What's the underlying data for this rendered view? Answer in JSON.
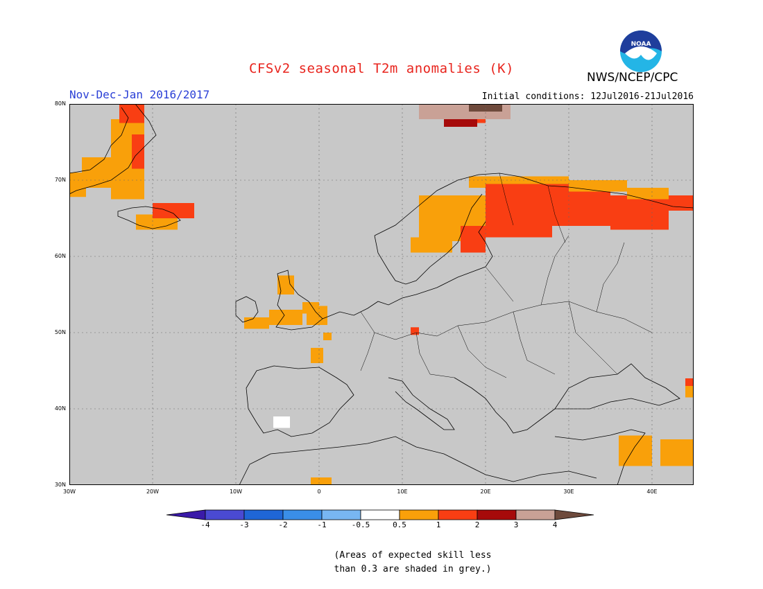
{
  "header": {
    "title": "CFSv2 seasonal T2m anomalies (K)",
    "period": "Nov-Dec-Jan 2016/2017",
    "initial_conditions": "Initial conditions: 12Jul2016-21Jul2016",
    "agency": "NWS/NCEP/CPC",
    "logo_text": "NOAA"
  },
  "map": {
    "extent": {
      "lon": [
        -30,
        45
      ],
      "lat": [
        30,
        80
      ]
    },
    "background_color": "#c8c8c8",
    "grid": true,
    "lat_labels": [
      "30N",
      "40N",
      "50N",
      "60N",
      "70N",
      "80N"
    ],
    "lon_labels": [
      "30W",
      "20W",
      "10W",
      "0",
      "10E",
      "20E",
      "30E",
      "40E"
    ],
    "anomaly_patches": [
      {
        "region": "East Greenland",
        "level": "0.5-1",
        "rects": [
          [
            -25,
            67.5,
            -21,
            78
          ],
          [
            -28.5,
            69,
            -25,
            73
          ],
          [
            -30,
            67.8,
            -28,
            71
          ]
        ]
      },
      {
        "region": "East Greenland coast",
        "level": "1-2",
        "rects": [
          [
            -24,
            77.5,
            -21,
            80
          ],
          [
            -22.5,
            71.5,
            -21,
            76
          ]
        ]
      },
      {
        "region": "Iceland",
        "level": "0.5-1",
        "rects": [
          [
            -22,
            63.5,
            -17,
            65.5
          ]
        ]
      },
      {
        "region": "Iceland",
        "level": "1-2",
        "rects": [
          [
            -20,
            65,
            -15,
            67
          ]
        ]
      },
      {
        "region": "Svalbard",
        "level": "1-2",
        "rects": [
          [
            15,
            77.5,
            20,
            79
          ]
        ]
      },
      {
        "region": "Svalbard",
        "level": "2-3",
        "rects": [
          [
            15,
            77,
            19,
            78
          ]
        ]
      },
      {
        "region": "Svalbard",
        "level": "3-4",
        "rects": [
          [
            12,
            78,
            23,
            80
          ]
        ]
      },
      {
        "region": "Svalbard",
        "level": ">4",
        "rects": [
          [
            18,
            79,
            22,
            80
          ]
        ]
      },
      {
        "region": "Scandinavia",
        "level": "0.5-1",
        "rects": [
          [
            12,
            62,
            17,
            68
          ],
          [
            11,
            60.5,
            16,
            62.5
          ],
          [
            18,
            69,
            30,
            70.5
          ],
          [
            14.5,
            62.5,
            20.5,
            68
          ]
        ]
      },
      {
        "region": "Finland and NW Russia",
        "level": "1-2",
        "rects": [
          [
            20,
            62.5,
            28,
            69.5
          ],
          [
            27,
            64,
            35,
            69.5
          ],
          [
            35,
            63.5,
            42,
            68
          ],
          [
            42,
            66,
            45,
            68
          ],
          [
            17,
            60.5,
            20,
            64
          ]
        ]
      },
      {
        "region": "Kola peninsula",
        "level": "0.5-1",
        "rects": [
          [
            30,
            68.5,
            37,
            70
          ],
          [
            37,
            67.5,
            42,
            69
          ]
        ]
      },
      {
        "region": "British Isles",
        "level": "0.5-1",
        "rects": [
          [
            -1.5,
            51,
            1,
            53.5
          ],
          [
            -6,
            51,
            -2,
            53
          ],
          [
            -5,
            55,
            -3,
            57.5
          ],
          [
            -2,
            52.5,
            0,
            54
          ],
          [
            -9,
            50.5,
            -6,
            52
          ]
        ]
      },
      {
        "region": "France",
        "level": "0.5-1",
        "rects": [
          [
            -1,
            46,
            0.5,
            48
          ],
          [
            0.5,
            49,
            1.5,
            50
          ]
        ]
      },
      {
        "region": "Central Germany",
        "level": "1-2",
        "rects": [
          [
            11,
            49.7,
            12,
            50.7
          ]
        ]
      },
      {
        "region": "Middle East",
        "level": "0.5-1",
        "rects": [
          [
            41,
            32.5,
            45,
            36
          ],
          [
            36,
            32.5,
            40,
            36.5
          ]
        ]
      },
      {
        "region": "Caucasus",
        "level": "0.5-1",
        "rects": [
          [
            44,
            41.5,
            45,
            44
          ]
        ]
      },
      {
        "region": "Caucasus",
        "level": "1-2",
        "rects": [
          [
            44,
            43,
            45,
            44
          ]
        ]
      },
      {
        "region": "North Africa",
        "level": "0.5-1",
        "rects": [
          [
            -1,
            30,
            1.5,
            31
          ]
        ]
      },
      {
        "region": "Iberia",
        "level": "-0.5-0.5",
        "rects": [
          [
            -5.5,
            37.5,
            -3.5,
            39
          ]
        ]
      }
    ]
  },
  "colorbar": {
    "labels": [
      "-4",
      "-3",
      "-2",
      "-1",
      "-0.5",
      "0.5",
      "1",
      "2",
      "3",
      "4"
    ],
    "colors": [
      "#3a1aa8",
      "#4a4ad2",
      "#1f66d6",
      "#3a8ee8",
      "#78b6f2",
      "#ffffff",
      "#f9a00a",
      "#f93e13",
      "#a60a0a",
      "#c9a196",
      "#6e4a3c"
    ]
  },
  "footnote": {
    "line1": "(Areas of expected skill less",
    "line2": "than 0.3 are shaded in grey.)"
  }
}
